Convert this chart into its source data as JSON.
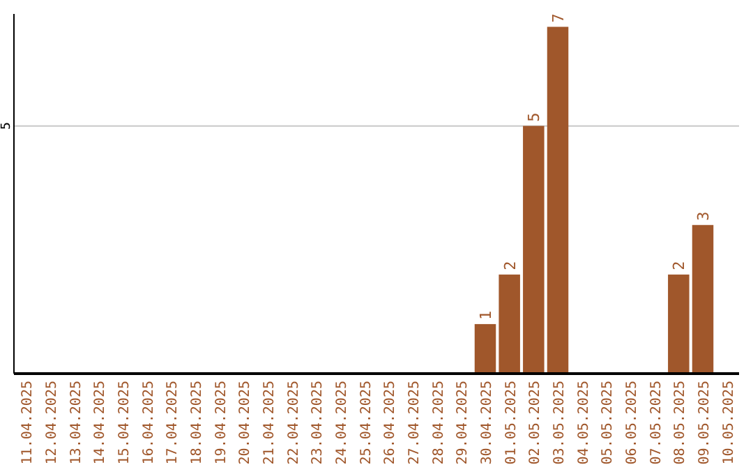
{
  "chart_data": {
    "type": "bar",
    "categories": [
      "11.04.2025",
      "12.04.2025",
      "13.04.2025",
      "14.04.2025",
      "15.04.2025",
      "16.04.2025",
      "17.04.2025",
      "18.04.2025",
      "19.04.2025",
      "20.04.2025",
      "21.04.2025",
      "22.04.2025",
      "23.04.2025",
      "24.04.2025",
      "25.04.2025",
      "26.04.2025",
      "27.04.2025",
      "28.04.2025",
      "29.04.2025",
      "30.04.2025",
      "01.05.2025",
      "02.05.2025",
      "03.05.2025",
      "04.05.2025",
      "05.05.2025",
      "06.05.2025",
      "07.05.2025",
      "08.05.2025",
      "09.05.2025",
      "10.05.2025"
    ],
    "values": [
      null,
      null,
      null,
      null,
      null,
      null,
      null,
      null,
      null,
      null,
      null,
      null,
      null,
      null,
      null,
      null,
      null,
      null,
      null,
      1,
      2,
      5,
      7,
      null,
      null,
      null,
      null,
      2,
      3,
      null
    ],
    "color": "#a0572b",
    "ylim": [
      0,
      7.26
    ],
    "yticks": [
      5
    ],
    "grid": "y",
    "data_labels": true
  }
}
